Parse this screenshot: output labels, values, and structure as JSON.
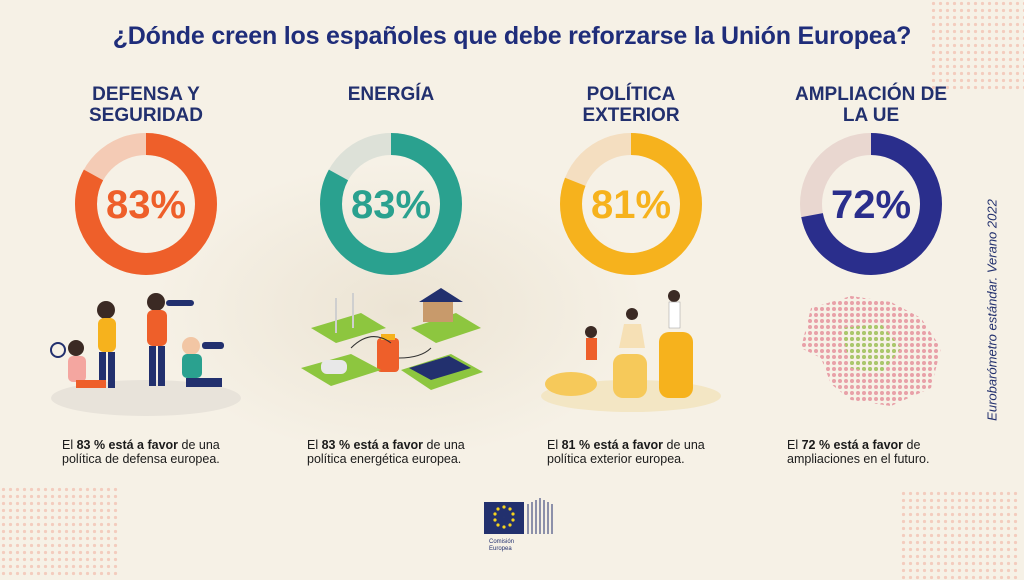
{
  "title": "¿Dónde creen los españoles que debe reforzarse la Unión Europea?",
  "side_note": "Eurobarómetro estándar. Verano 2022",
  "logo_text": [
    "Comisión",
    "Europea"
  ],
  "chart_data": {
    "type": "pie",
    "title": "¿Dónde creen los españoles que debe reforzarse la Unión Europea?",
    "categories": [
      "DEFENSA Y SEGURIDAD",
      "ENERGÍA",
      "POLÍTICA EXTERIOR",
      "AMPLIACIÓN DE LA UE"
    ],
    "values": [
      83,
      83,
      81,
      72
    ],
    "unit": "%"
  },
  "panels": [
    {
      "heading": "DEFENSA Y\nSEGURIDAD",
      "value": 83,
      "label": "83%",
      "color": "#ee5f2a",
      "track": "#f4cbb5",
      "caption_pre": "El ",
      "caption_bold": "83 % está a favor",
      "caption_post": " de una política de defensa europea.",
      "illus": "people-binoculars-icon"
    },
    {
      "heading": "ENERGÍA",
      "value": 83,
      "label": "83%",
      "color": "#2aa18f",
      "track": "#dde1d8",
      "caption_pre": "El ",
      "caption_bold": "83 % está a favor",
      "caption_post": " de una política energética europea.",
      "illus": "renewable-energy-icon"
    },
    {
      "heading": "POLÍTICA\nEXTERIOR",
      "value": 81,
      "label": "81%",
      "color": "#f6b21d",
      "track": "#f4dec0",
      "caption_pre": "El ",
      "caption_bold": "81 % está a favor",
      "caption_post": " de una política exterior europea.",
      "illus": "people-steps-icon"
    },
    {
      "heading": "AMPLIACIÓN DE\nLA UE",
      "value": 72,
      "label": "72%",
      "color": "#2a2e8c",
      "track": "#e9d7d0",
      "caption_pre": "El ",
      "caption_bold": "72 % está a favor",
      "caption_post": " de ampliaciones en el futuro.",
      "illus": "europe-map-icon"
    }
  ]
}
